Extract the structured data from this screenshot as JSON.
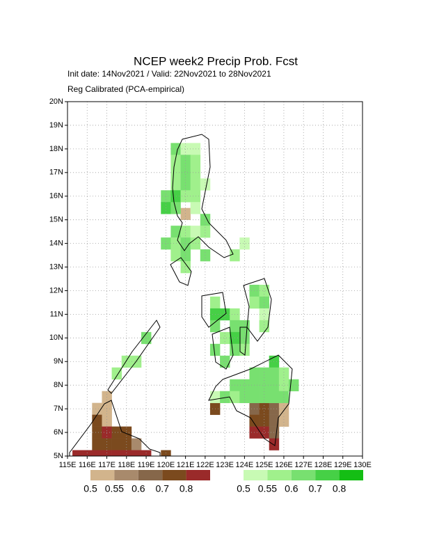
{
  "chart_data": {
    "type": "map",
    "title": "NCEP week2 Precip Prob. Fcst",
    "subtitle": [
      "Init date: 14Nov2021 / Valid: 22Nov2021 to 28Nov2021",
      "Reg Calibrated (PCA-empirical)"
    ],
    "xlim": [
      115,
      130
    ],
    "ylim": [
      5,
      20
    ],
    "xticks": [
      {
        "value": 115,
        "label": "115E"
      },
      {
        "value": 116,
        "label": "116E"
      },
      {
        "value": 117,
        "label": "117E"
      },
      {
        "value": 118,
        "label": "118E"
      },
      {
        "value": 119,
        "label": "119E"
      },
      {
        "value": 120,
        "label": "120E"
      },
      {
        "value": 121,
        "label": "121E"
      },
      {
        "value": 122,
        "label": "122E"
      },
      {
        "value": 123,
        "label": "123E"
      },
      {
        "value": 124,
        "label": "124E"
      },
      {
        "value": 125,
        "label": "125E"
      },
      {
        "value": 126,
        "label": "126E"
      },
      {
        "value": 127,
        "label": "127E"
      },
      {
        "value": 128,
        "label": "128E"
      },
      {
        "value": 129,
        "label": "129E"
      },
      {
        "value": 130,
        "label": "130E"
      }
    ],
    "yticks": [
      {
        "value": 5,
        "label": "5N"
      },
      {
        "value": 6,
        "label": "6N"
      },
      {
        "value": 7,
        "label": "7N"
      },
      {
        "value": 8,
        "label": "8N"
      },
      {
        "value": 9,
        "label": "9N"
      },
      {
        "value": 10,
        "label": "10N"
      },
      {
        "value": 11,
        "label": "11N"
      },
      {
        "value": 12,
        "label": "12N"
      },
      {
        "value": 13,
        "label": "13N"
      },
      {
        "value": 14,
        "label": "14N"
      },
      {
        "value": 15,
        "label": "15N"
      },
      {
        "value": 16,
        "label": "16N"
      },
      {
        "value": 17,
        "label": "17N"
      },
      {
        "value": 18,
        "label": "18N"
      },
      {
        "value": 19,
        "label": "19N"
      },
      {
        "value": 20,
        "label": "20N"
      }
    ],
    "grid": true,
    "colorbars": [
      {
        "levels": [
          0.5,
          0.55,
          0.6,
          0.7,
          0.8
        ],
        "colors": [
          "#d2b48c",
          "#a88a6c",
          "#86674a",
          "#7b4a1e",
          "#9a2a2a"
        ]
      },
      {
        "levels": [
          0.5,
          0.55,
          0.6,
          0.7,
          0.8
        ],
        "colors": [
          "#c8fab4",
          "#a0f08c",
          "#78e070",
          "#46d046",
          "#14be14"
        ]
      }
    ],
    "dry_cells": [
      [
        120.75,
        15.0,
        0.5
      ],
      [
        122.25,
        6.75,
        0.7
      ],
      [
        124.25,
        6.75,
        0.6
      ],
      [
        124.75,
        6.75,
        0.7
      ],
      [
        125.25,
        6.75,
        0.6
      ],
      [
        125.75,
        6.75,
        0.5
      ],
      [
        124.25,
        6.25,
        0.7
      ],
      [
        124.75,
        6.25,
        0.7
      ],
      [
        125.25,
        6.25,
        0.6
      ],
      [
        125.75,
        6.25,
        0.5
      ],
      [
        124.25,
        5.75,
        0.8
      ],
      [
        124.75,
        5.75,
        0.8
      ],
      [
        125.25,
        5.75,
        0.6
      ],
      [
        125.25,
        5.25,
        0.8
      ],
      [
        116.75,
        7.25,
        0.5
      ],
      [
        116.25,
        6.75,
        0.5
      ],
      [
        116.75,
        6.75,
        0.5
      ],
      [
        116.25,
        6.25,
        0.7
      ],
      [
        116.75,
        6.25,
        0.5
      ],
      [
        116.25,
        5.75,
        0.7
      ],
      [
        116.75,
        5.75,
        0.8
      ],
      [
        117.25,
        5.75,
        0.7
      ],
      [
        117.75,
        5.75,
        0.7
      ],
      [
        116.25,
        5.25,
        0.7
      ],
      [
        116.75,
        5.25,
        0.7
      ],
      [
        117.25,
        5.25,
        0.7
      ],
      [
        117.75,
        5.25,
        0.7
      ],
      [
        118.25,
        5.25,
        0.55
      ],
      [
        115.25,
        4.75,
        0.8
      ],
      [
        115.75,
        4.75,
        0.8
      ],
      [
        116.25,
        4.75,
        0.8
      ],
      [
        116.75,
        4.75,
        0.8
      ],
      [
        117.25,
        4.75,
        0.8
      ],
      [
        117.75,
        4.75,
        0.8
      ],
      [
        118.25,
        4.75,
        0.8
      ],
      [
        118.75,
        4.75,
        0.8
      ],
      [
        119.75,
        4.75,
        0.7
      ]
    ],
    "wet_cells": [
      [
        120.25,
        17.75,
        0.6
      ],
      [
        120.75,
        17.75,
        0.5
      ],
      [
        121.25,
        17.75,
        0.5
      ],
      [
        120.25,
        17.25,
        0.55
      ],
      [
        120.75,
        17.25,
        0.6
      ],
      [
        121.25,
        17.25,
        0.55
      ],
      [
        120.25,
        16.75,
        0.55
      ],
      [
        120.75,
        16.75,
        0.6
      ],
      [
        121.25,
        16.75,
        0.55
      ],
      [
        120.25,
        16.25,
        0.55
      ],
      [
        120.75,
        16.25,
        0.6
      ],
      [
        121.25,
        16.25,
        0.55
      ],
      [
        121.75,
        16.25,
        0.5
      ],
      [
        119.75,
        15.75,
        0.6
      ],
      [
        120.25,
        15.75,
        0.7
      ],
      [
        120.75,
        15.75,
        0.55
      ],
      [
        121.25,
        15.75,
        0.55
      ],
      [
        119.75,
        15.25,
        0.7
      ],
      [
        120.25,
        15.25,
        0.6
      ],
      [
        121.25,
        15.25,
        0.5
      ],
      [
        121.75,
        14.75,
        0.6
      ],
      [
        120.25,
        14.25,
        0.6
      ],
      [
        120.75,
        14.25,
        0.55
      ],
      [
        121.25,
        14.25,
        0.5
      ],
      [
        121.75,
        14.25,
        0.55
      ],
      [
        119.75,
        13.75,
        0.6
      ],
      [
        120.25,
        13.75,
        0.55
      ],
      [
        120.75,
        13.75,
        0.6
      ],
      [
        121.25,
        13.75,
        0.55
      ],
      [
        123.75,
        13.75,
        0.5
      ],
      [
        120.25,
        13.25,
        0.55
      ],
      [
        120.75,
        13.25,
        0.6
      ],
      [
        121.75,
        13.25,
        0.6
      ],
      [
        123.25,
        13.25,
        0.55
      ],
      [
        120.75,
        12.75,
        0.55
      ],
      [
        124.25,
        11.75,
        0.6
      ],
      [
        124.75,
        11.75,
        0.55
      ],
      [
        122.25,
        11.25,
        0.55
      ],
      [
        124.25,
        11.25,
        0.55
      ],
      [
        124.75,
        11.25,
        0.6
      ],
      [
        122.25,
        10.75,
        0.7
      ],
      [
        122.75,
        10.75,
        0.7
      ],
      [
        123.25,
        10.75,
        0.55
      ],
      [
        124.75,
        10.75,
        0.5
      ],
      [
        122.25,
        10.25,
        0.6
      ],
      [
        123.25,
        10.25,
        0.6
      ],
      [
        123.75,
        10.25,
        0.6
      ],
      [
        124.75,
        10.25,
        0.55
      ],
      [
        122.75,
        9.75,
        0.55
      ],
      [
        123.25,
        9.75,
        0.7
      ],
      [
        123.75,
        9.75,
        0.6
      ],
      [
        118.75,
        9.75,
        0.6
      ],
      [
        122.25,
        9.25,
        0.6
      ],
      [
        123.25,
        9.25,
        0.6
      ],
      [
        123.75,
        9.25,
        0.55
      ],
      [
        122.75,
        8.75,
        0.6
      ],
      [
        125.25,
        8.75,
        0.7
      ],
      [
        117.75,
        8.75,
        0.55
      ],
      [
        118.25,
        8.75,
        0.55
      ],
      [
        124.25,
        8.25,
        0.6
      ],
      [
        124.75,
        8.25,
        0.6
      ],
      [
        125.25,
        8.25,
        0.6
      ],
      [
        125.75,
        8.25,
        0.55
      ],
      [
        117.25,
        8.25,
        0.55
      ],
      [
        123.25,
        7.75,
        0.6
      ],
      [
        123.75,
        7.75,
        0.6
      ],
      [
        124.25,
        7.75,
        0.6
      ],
      [
        124.75,
        7.75,
        0.6
      ],
      [
        125.25,
        7.75,
        0.6
      ],
      [
        125.75,
        7.75,
        0.55
      ],
      [
        126.25,
        7.75,
        0.6
      ],
      [
        122.25,
        7.25,
        0.5
      ],
      [
        122.75,
        7.25,
        0.6
      ],
      [
        123.25,
        7.25,
        0.55
      ],
      [
        123.75,
        7.25,
        0.6
      ],
      [
        124.25,
        7.25,
        0.6
      ],
      [
        124.75,
        7.25,
        0.6
      ],
      [
        125.25,
        7.25,
        0.6
      ],
      [
        125.75,
        7.25,
        0.6
      ]
    ]
  }
}
